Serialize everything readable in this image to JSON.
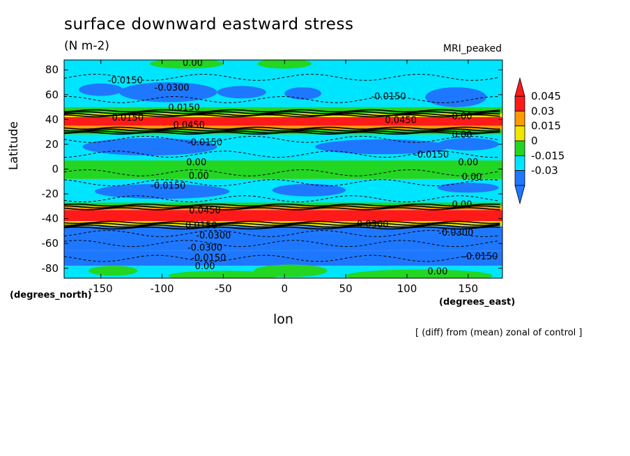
{
  "chart_data": {
    "type": "heatmap",
    "title": "surface downward eastward stress",
    "units": "(N m-2)",
    "model": "MRI_peaked",
    "xlabel": "lon",
    "ylabel": "Latitude",
    "x_unit_note": "(degrees_east)",
    "y_unit_note": "(degrees_north)",
    "footnote": "[ (diff) from (mean) zonal of control ]",
    "xlim": [
      -180,
      178
    ],
    "ylim": [
      -88,
      88
    ],
    "xticks": [
      -150,
      -100,
      -50,
      0,
      50,
      100,
      150
    ],
    "xtick_labels": [
      "-150",
      "-100",
      "-50",
      "0",
      "50",
      "100",
      "150"
    ],
    "yticks": [
      -80,
      -60,
      -40,
      -20,
      0,
      20,
      40,
      60,
      80
    ],
    "ytick_labels": [
      "-80",
      "-60",
      "-40",
      "-20",
      "0",
      "20",
      "40",
      "60",
      "80"
    ],
    "colorbar": {
      "levels": [
        -0.045,
        -0.03,
        -0.015,
        0,
        0.015,
        0.03,
        0.045
      ],
      "labels": [
        "0.045",
        "0.03",
        "0.015",
        "0",
        "-0.015",
        "-0.03"
      ],
      "colors": [
        "#1e78ff",
        "#00e5ff",
        "#22d622",
        "#f2e600",
        "#ff9b00",
        "#ff1a1a"
      ]
    },
    "bands": [
      {
        "lat": [
          -88,
          -78
        ],
        "color": "#00e5ff"
      },
      {
        "lat": [
          -78,
          -66
        ],
        "color": "#1e78ff"
      },
      {
        "lat": [
          -66,
          -52
        ],
        "color": "#1e78ff"
      },
      {
        "lat": [
          -52,
          -46
        ],
        "color": "#1e78ff"
      },
      {
        "lat": [
          -46,
          -42
        ],
        "color": "#f2e600"
      },
      {
        "lat": [
          -42,
          -33
        ],
        "color": "#ff1a1a"
      },
      {
        "lat": [
          -33,
          -30
        ],
        "color": "#ff9b00"
      },
      {
        "lat": [
          -30,
          -27
        ],
        "color": "#22d622"
      },
      {
        "lat": [
          -27,
          -8
        ],
        "color": "#00e5ff"
      },
      {
        "lat": [
          -8,
          7
        ],
        "color": "#22d622"
      },
      {
        "lat": [
          7,
          28
        ],
        "color": "#00e5ff"
      },
      {
        "lat": [
          28,
          32
        ],
        "color": "#22d622"
      },
      {
        "lat": [
          32,
          35
        ],
        "color": "#ff9b00"
      },
      {
        "lat": [
          35,
          42
        ],
        "color": "#ff1a1a"
      },
      {
        "lat": [
          42,
          45
        ],
        "color": "#f2e600"
      },
      {
        "lat": [
          45,
          50
        ],
        "color": "#22d622"
      },
      {
        "lat": [
          50,
          88
        ],
        "color": "#00e5ff"
      }
    ],
    "blobs": [
      {
        "lon": -95,
        "lat": 62,
        "rlon": 40,
        "rlat": 8,
        "color": "#1e78ff"
      },
      {
        "lon": -35,
        "lat": 62,
        "rlon": 20,
        "rlat": 5,
        "color": "#1e78ff"
      },
      {
        "lon": 15,
        "lat": 61,
        "rlon": 15,
        "rlat": 5,
        "color": "#1e78ff"
      },
      {
        "lon": 140,
        "lat": 58,
        "rlon": 25,
        "rlat": 8,
        "color": "#1e78ff"
      },
      {
        "lon": -150,
        "lat": 64,
        "rlon": 18,
        "rlat": 5,
        "color": "#1e78ff"
      },
      {
        "lon": -110,
        "lat": 18,
        "rlon": 55,
        "rlat": 7,
        "color": "#1e78ff"
      },
      {
        "lon": 80,
        "lat": 18,
        "rlon": 55,
        "rlat": 6,
        "color": "#1e78ff"
      },
      {
        "lon": 150,
        "lat": 20,
        "rlon": 25,
        "rlat": 5,
        "color": "#1e78ff"
      },
      {
        "lon": -100,
        "lat": -18,
        "rlon": 55,
        "rlat": 6,
        "color": "#1e78ff"
      },
      {
        "lon": 20,
        "lat": -17,
        "rlon": 30,
        "rlat": 5,
        "color": "#1e78ff"
      },
      {
        "lon": 150,
        "lat": -15,
        "rlon": 25,
        "rlat": 4,
        "color": "#1e78ff"
      },
      {
        "lon": -80,
        "lat": 85,
        "rlon": 30,
        "rlat": 4,
        "color": "#22d622"
      },
      {
        "lon": 0,
        "lat": 85,
        "rlon": 22,
        "rlat": 4,
        "color": "#22d622"
      },
      {
        "lon": 110,
        "lat": -86,
        "rlon": 60,
        "rlat": 5,
        "color": "#22d622"
      },
      {
        "lon": -50,
        "lat": -86,
        "rlon": 45,
        "rlat": 4,
        "color": "#22d622"
      },
      {
        "lon": 5,
        "lat": -82,
        "rlon": 30,
        "rlat": 5,
        "color": "#22d622"
      },
      {
        "lon": -140,
        "lat": -82,
        "rlon": 20,
        "rlat": 4,
        "color": "#22d622"
      }
    ],
    "contour_labels": [
      {
        "text": "0.00",
        "lon": -75,
        "lat": 86
      },
      {
        "text": "-0.0150",
        "lon": -130,
        "lat": 72
      },
      {
        "text": "-0.0300",
        "lon": -92,
        "lat": 66
      },
      {
        "text": "-0.0150",
        "lon": 85,
        "lat": 59
      },
      {
        "text": "0.0150",
        "lon": -82,
        "lat": 50
      },
      {
        "text": "0.0150",
        "lon": -128,
        "lat": 42
      },
      {
        "text": "0.0450",
        "lon": -78,
        "lat": 36
      },
      {
        "text": "0.0450",
        "lon": 95,
        "lat": 40
      },
      {
        "text": "0.00",
        "lon": 145,
        "lat": 43
      },
      {
        "text": "0.00",
        "lon": 145,
        "lat": 28
      },
      {
        "text": "-0.0150",
        "lon": -65,
        "lat": 22
      },
      {
        "text": "-0.0150",
        "lon": 120,
        "lat": 12
      },
      {
        "text": "0.00",
        "lon": -72,
        "lat": 6
      },
      {
        "text": "0.00",
        "lon": 150,
        "lat": 6
      },
      {
        "text": "0.00",
        "lon": -70,
        "lat": -5
      },
      {
        "text": "0.00",
        "lon": 153,
        "lat": -6
      },
      {
        "text": "-0.0150",
        "lon": -95,
        "lat": -13
      },
      {
        "text": "0.00",
        "lon": 145,
        "lat": -28
      },
      {
        "text": "0.0450",
        "lon": -65,
        "lat": -33
      },
      {
        "text": "0.0150",
        "lon": -68,
        "lat": -45
      },
      {
        "text": "0.0300",
        "lon": 72,
        "lat": -44
      },
      {
        "text": "-0.0300",
        "lon": -58,
        "lat": -53
      },
      {
        "text": "-0.0300",
        "lon": 140,
        "lat": -51
      },
      {
        "text": "-0.0300",
        "lon": -65,
        "lat": -63
      },
      {
        "text": "-0.0150",
        "lon": -62,
        "lat": -71
      },
      {
        "text": "-0.0150",
        "lon": 160,
        "lat": -70
      },
      {
        "text": "0.00",
        "lon": -65,
        "lat": -78
      },
      {
        "text": "0.00",
        "lon": 125,
        "lat": -82
      }
    ]
  }
}
